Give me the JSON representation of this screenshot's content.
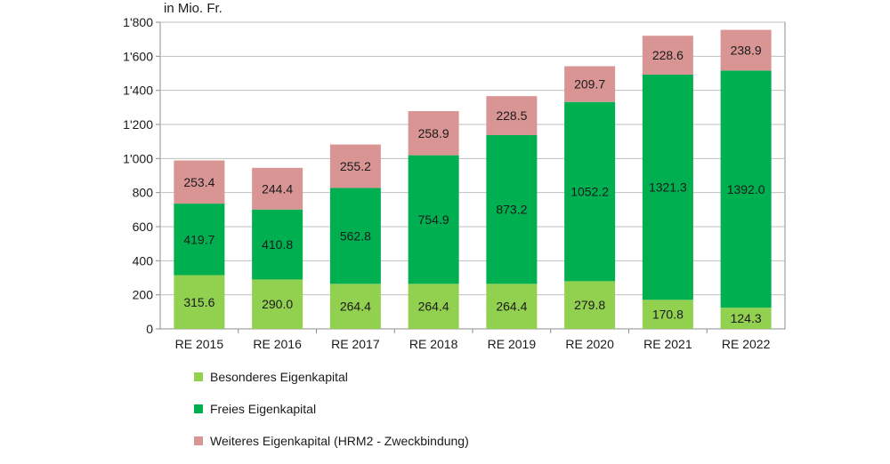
{
  "chart_data": {
    "type": "bar",
    "stacked": true,
    "unit_label": "in Mio. Fr.",
    "categories": [
      "RE 2015",
      "RE 2016",
      "RE 2017",
      "RE 2018",
      "RE 2019",
      "RE 2020",
      "RE 2021",
      "RE 2022"
    ],
    "series": [
      {
        "name": "Besonderes Eigenkapital",
        "color": "#92d050",
        "values": [
          315.6,
          290.0,
          264.4,
          264.4,
          264.4,
          279.8,
          170.8,
          124.3
        ]
      },
      {
        "name": "Freies Eigenkapital",
        "color": "#00b050",
        "values": [
          419.7,
          410.8,
          562.8,
          754.9,
          873.2,
          1052.2,
          1321.3,
          1392.0
        ]
      },
      {
        "name": "Weiteres Eigenkapital (HRM2 - Zweckbindung)",
        "color": "#d99594",
        "values": [
          253.4,
          244.4,
          255.2,
          258.9,
          228.5,
          209.7,
          228.6,
          238.9
        ]
      }
    ],
    "value_labels": [
      [
        "315.6",
        "290.0",
        "264.4",
        "264.4",
        "264.4",
        "279.8",
        "170.8",
        "124.3"
      ],
      [
        "419.7",
        "410.8",
        "562.8",
        "754.9",
        "873.2",
        "1052.2",
        "1321.3",
        "1392.0"
      ],
      [
        "253.4",
        "244.4",
        "255.2",
        "258.9",
        "228.5",
        "209.7",
        "228.6",
        "238.9"
      ]
    ],
    "y_ticks": [
      0,
      200,
      400,
      600,
      800,
      1000,
      1200,
      1400,
      1600,
      1800
    ],
    "y_tick_labels": [
      "0",
      "200",
      "400",
      "600",
      "800",
      "1'000",
      "1'200",
      "1'400",
      "1'600",
      "1'800"
    ],
    "ylim": [
      0,
      1800
    ],
    "grid": true,
    "legend_position": "bottom-left"
  }
}
